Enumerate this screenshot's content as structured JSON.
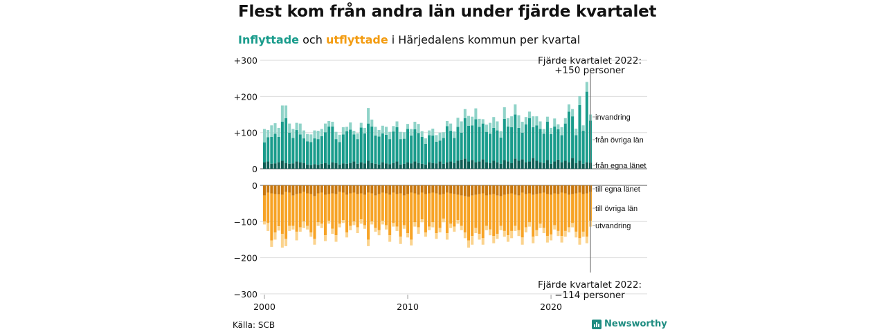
{
  "title": "Flest kom från andra län under fjärde kvartalet",
  "subtitle": {
    "part_in": "Inflyttade",
    "part_mid1": " och ",
    "part_out": "utflyttade",
    "part_rest": " i Härjedalens kommun per kvartal"
  },
  "source": "Källa: SCB",
  "brand": "Newsworthy",
  "colors": {
    "in_own": "#0e5e55",
    "in_other": "#1a9c8c",
    "in_immig": "#8fd3c8",
    "out_own": "#c9780e",
    "out_other": "#f7a325",
    "out_emig": "#fbd38d",
    "accent_in": "#1a9c8c",
    "accent_out": "#f39c12"
  },
  "annotations": {
    "top": [
      "Fjärde kvartalet 2022:",
      "+150 personer"
    ],
    "bottom": [
      "Fjärde kvartalet 2022:",
      "−114 personer"
    ]
  },
  "chart_data": [
    {
      "type": "bar",
      "subtype": "stacked",
      "title": "Inflyttade",
      "x": [
        "2000Q1",
        "2000Q2",
        "2000Q3",
        "2000Q4",
        "2001Q1",
        "2001Q2",
        "2001Q3",
        "2001Q4",
        "2002Q1",
        "2002Q2",
        "2002Q3",
        "2002Q4",
        "2003Q1",
        "2003Q2",
        "2003Q3",
        "2003Q4",
        "2004Q1",
        "2004Q2",
        "2004Q3",
        "2004Q4",
        "2005Q1",
        "2005Q2",
        "2005Q3",
        "2005Q4",
        "2006Q1",
        "2006Q2",
        "2006Q3",
        "2006Q4",
        "2007Q1",
        "2007Q2",
        "2007Q3",
        "2007Q4",
        "2008Q1",
        "2008Q2",
        "2008Q3",
        "2008Q4",
        "2009Q1",
        "2009Q2",
        "2009Q3",
        "2009Q4",
        "2010Q1",
        "2010Q2",
        "2010Q3",
        "2010Q4",
        "2011Q1",
        "2011Q2",
        "2011Q3",
        "2011Q4",
        "2012Q1",
        "2012Q2",
        "2012Q3",
        "2012Q4",
        "2013Q1",
        "2013Q2",
        "2013Q3",
        "2013Q4",
        "2014Q1",
        "2014Q2",
        "2014Q3",
        "2014Q4",
        "2015Q1",
        "2015Q2",
        "2015Q3",
        "2015Q4",
        "2016Q1",
        "2016Q2",
        "2016Q3",
        "2016Q4",
        "2017Q1",
        "2017Q2",
        "2017Q3",
        "2017Q4",
        "2018Q1",
        "2018Q2",
        "2018Q3",
        "2018Q4",
        "2019Q1",
        "2019Q2",
        "2019Q3",
        "2019Q4",
        "2020Q1",
        "2020Q2",
        "2020Q3",
        "2020Q4",
        "2021Q1",
        "2021Q2",
        "2021Q3",
        "2021Q4",
        "2022Q1",
        "2022Q2",
        "2022Q3",
        "2022Q4"
      ],
      "series": [
        {
          "name": "från egna länet",
          "values": [
            18,
            20,
            14,
            15,
            18,
            22,
            16,
            14,
            15,
            20,
            18,
            16,
            12,
            10,
            13,
            11,
            14,
            16,
            12,
            18,
            16,
            12,
            15,
            14,
            16,
            20,
            14,
            18,
            15,
            22,
            16,
            14,
            12,
            18,
            15,
            13,
            16,
            20,
            12,
            14,
            18,
            15,
            20,
            16,
            14,
            12,
            18,
            16,
            15,
            20,
            14,
            18,
            20,
            16,
            22,
            25,
            28,
            20,
            24,
            18,
            20,
            26,
            18,
            16,
            22,
            18,
            14,
            24,
            20,
            16,
            28,
            22,
            26,
            18,
            20,
            30,
            22,
            18,
            16,
            24,
            14,
            20,
            25,
            18,
            22,
            18,
            30,
            16,
            22,
            14,
            18,
            17
          ]
        },
        {
          "name": "från övriga län",
          "values": [
            55,
            67,
            74,
            82,
            70,
            108,
            124,
            86,
            70,
            87,
            77,
            68,
            64,
            64,
            71,
            71,
            76,
            85,
            105,
            99,
            66,
            62,
            80,
            90,
            92,
            75,
            68,
            96,
            83,
            103,
            101,
            78,
            77,
            80,
            79,
            69,
            87,
            95,
            70,
            69,
            92,
            77,
            89,
            83,
            74,
            57,
            75,
            76,
            60,
            58,
            71,
            100,
            85,
            69,
            94,
            75,
            112,
            99,
            96,
            119,
            96,
            99,
            84,
            81,
            91,
            88,
            72,
            114,
            97,
            99,
            122,
            91,
            74,
            105,
            120,
            85,
            98,
            92,
            81,
            106,
            82,
            97,
            84,
            75,
            103,
            140,
            115,
            77,
            154,
            91,
            195,
            116
          ]
        },
        {
          "name": "invandring",
          "values": [
            37,
            20,
            32,
            29,
            25,
            45,
            35,
            25,
            25,
            20,
            30,
            22,
            20,
            21,
            22,
            23,
            20,
            24,
            15,
            13,
            20,
            20,
            20,
            12,
            20,
            10,
            16,
            13,
            15,
            43,
            19,
            24,
            18,
            21,
            22,
            20,
            15,
            16,
            20,
            18,
            14,
            18,
            21,
            25,
            16,
            15,
            13,
            19,
            18,
            22,
            16,
            14,
            20,
            18,
            25,
            31,
            25,
            27,
            24,
            30,
            22,
            12,
            20,
            30,
            30,
            25,
            18,
            32,
            23,
            30,
            28,
            35,
            30,
            20,
            18,
            30,
            25,
            21,
            13,
            14,
            17,
            22,
            14,
            22,
            15,
            20,
            20,
            18,
            25,
            15,
            27,
            17
          ]
        }
      ],
      "ylim": [
        0,
        300
      ],
      "yticks": [
        "0",
        "+100",
        "+200",
        "+300"
      ]
    },
    {
      "type": "bar",
      "subtype": "stacked",
      "title": "Utflyttade",
      "x": [
        "2000Q1",
        "2000Q2",
        "2000Q3",
        "2000Q4",
        "2001Q1",
        "2001Q2",
        "2001Q3",
        "2001Q4",
        "2002Q1",
        "2002Q2",
        "2002Q3",
        "2002Q4",
        "2003Q1",
        "2003Q2",
        "2003Q3",
        "2003Q4",
        "2004Q1",
        "2004Q2",
        "2004Q3",
        "2004Q4",
        "2005Q1",
        "2005Q2",
        "2005Q3",
        "2005Q4",
        "2006Q1",
        "2006Q2",
        "2006Q3",
        "2006Q4",
        "2007Q1",
        "2007Q2",
        "2007Q3",
        "2007Q4",
        "2008Q1",
        "2008Q2",
        "2008Q3",
        "2008Q4",
        "2009Q1",
        "2009Q2",
        "2009Q3",
        "2009Q4",
        "2010Q1",
        "2010Q2",
        "2010Q3",
        "2010Q4",
        "2011Q1",
        "2011Q2",
        "2011Q3",
        "2011Q4",
        "2012Q1",
        "2012Q2",
        "2012Q3",
        "2012Q4",
        "2013Q1",
        "2013Q2",
        "2013Q3",
        "2013Q4",
        "2014Q1",
        "2014Q2",
        "2014Q3",
        "2014Q4",
        "2015Q1",
        "2015Q2",
        "2015Q3",
        "2015Q4",
        "2016Q1",
        "2016Q2",
        "2016Q3",
        "2016Q4",
        "2017Q1",
        "2017Q2",
        "2017Q3",
        "2017Q4",
        "2018Q1",
        "2018Q2",
        "2018Q3",
        "2018Q4",
        "2019Q1",
        "2019Q2",
        "2019Q3",
        "2019Q4",
        "2020Q1",
        "2020Q2",
        "2020Q3",
        "2020Q4",
        "2021Q1",
        "2021Q2",
        "2021Q3",
        "2021Q4",
        "2022Q1",
        "2022Q2",
        "2022Q3",
        "2022Q4"
      ],
      "series": [
        {
          "name": "till egna länet",
          "values": [
            -28,
            -20,
            -22,
            -24,
            -25,
            -26,
            -18,
            -20,
            -28,
            -24,
            -22,
            -18,
            -22,
            -24,
            -30,
            -22,
            -20,
            -26,
            -24,
            -22,
            -24,
            -18,
            -20,
            -26,
            -22,
            -20,
            -24,
            -22,
            -26,
            -20,
            -22,
            -28,
            -24,
            -20,
            -22,
            -26,
            -20,
            -24,
            -22,
            -28,
            -24,
            -20,
            -22,
            -26,
            -20,
            -24,
            -22,
            -20,
            -22,
            -26,
            -24,
            -20,
            -22,
            -24,
            -26,
            -28,
            -30,
            -32,
            -28,
            -26,
            -24,
            -22,
            -28,
            -26,
            -24,
            -28,
            -30,
            -26,
            -24,
            -22,
            -26,
            -28,
            -20,
            -24,
            -22,
            -26,
            -24,
            -22,
            -20,
            -24,
            -26,
            -22,
            -24,
            -20,
            -22,
            -26,
            -24,
            -22,
            -20,
            -24,
            -22,
            -18
          ]
        },
        {
          "name": "till övriga län",
          "values": [
            -72,
            -84,
            -130,
            -106,
            -88,
            -108,
            -130,
            -92,
            -84,
            -104,
            -94,
            -82,
            -90,
            -106,
            -118,
            -80,
            -86,
            -112,
            -74,
            -98,
            -114,
            -88,
            -76,
            -104,
            -90,
            -80,
            -92,
            -72,
            -84,
            -130,
            -78,
            -90,
            -100,
            -78,
            -88,
            -112,
            -84,
            -90,
            -120,
            -82,
            -108,
            -130,
            -80,
            -90,
            -74,
            -106,
            -92,
            -82,
            -110,
            -92,
            -68,
            -112,
            -84,
            -90,
            -70,
            -84,
            -100,
            -120,
            -112,
            -92,
            -110,
            -124,
            -84,
            -96,
            -116,
            -106,
            -82,
            -100,
            -114,
            -104,
            -86,
            -96,
            -124,
            -92,
            -80,
            -116,
            -100,
            -84,
            -98,
            -116,
            -110,
            -88,
            -102,
            -120,
            -104,
            -90,
            -80,
            -106,
            -126,
            -104,
            -120,
            -80
          ]
        },
        {
          "name": "utvandring",
          "values": [
            -8,
            -22,
            -18,
            -20,
            -12,
            -38,
            -20,
            -14,
            -10,
            -24,
            -12,
            -18,
            -10,
            -12,
            -16,
            -10,
            -12,
            -16,
            -8,
            -14,
            -18,
            -10,
            -8,
            -14,
            -12,
            -10,
            -16,
            -12,
            -10,
            -18,
            -8,
            -10,
            -14,
            -10,
            -12,
            -18,
            -10,
            -12,
            -20,
            -10,
            -12,
            -16,
            -12,
            -18,
            -8,
            -12,
            -10,
            -14,
            -16,
            -12,
            -10,
            -18,
            -12,
            -14,
            -10,
            -12,
            -16,
            -20,
            -24,
            -14,
            -16,
            -18,
            -12,
            -16,
            -20,
            -14,
            -12,
            -16,
            -18,
            -20,
            -14,
            -16,
            -20,
            -14,
            -12,
            -18,
            -16,
            -12,
            -14,
            -18,
            -16,
            -12,
            -14,
            -18,
            -16,
            -14,
            -12,
            -16,
            -18,
            -14,
            -18,
            -16
          ]
        }
      ],
      "ylim": [
        -300,
        0
      ],
      "yticks": [
        "0",
        "−100",
        "−200",
        "−300"
      ]
    }
  ],
  "x_tick_labels": [
    "2000",
    "2010",
    "2020"
  ],
  "legend_in": [
    "invandring",
    "från övriga län",
    "från egna länet"
  ],
  "legend_out": [
    "till egna länet",
    "till övriga län",
    "utvandring"
  ]
}
